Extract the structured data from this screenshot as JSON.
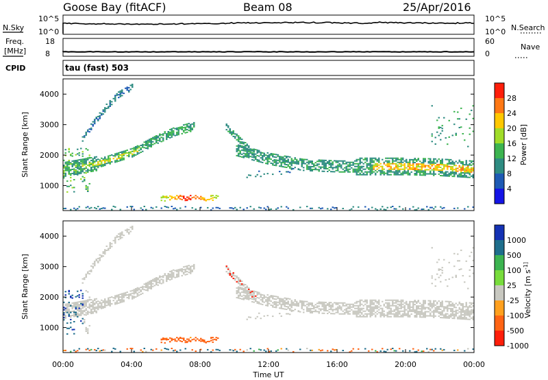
{
  "header": {
    "station": "Goose Bay (fitACF)",
    "beam": "Beam 08",
    "date": "25/Apr/2016"
  },
  "strips": {
    "nsky": {
      "label": "N.Sky",
      "tick_top": "10^5",
      "tick_bottom": "10^0"
    },
    "nsearch": {
      "label": "N.Search",
      "tick_top": "10^5",
      "tick_bottom": "10^0"
    },
    "freq": {
      "label_line1": "Freq.",
      "label_line2": "[MHz]",
      "tick_top": "18",
      "tick_bottom": "8",
      "value_mhz": 10.5
    },
    "nave": {
      "label": "Nave",
      "tick_top": "60",
      "tick_bottom": "0"
    },
    "cpid": {
      "label": "CPID",
      "value": "tau (fast) 503"
    }
  },
  "chart_data": [
    {
      "type": "heatmap",
      "name": "power-panel",
      "ylabel": "Slant Range [km]",
      "xlabel": "Time UT",
      "xlim": [
        0,
        24
      ],
      "ylim": [
        180,
        4500
      ],
      "y_ticks": [
        1000,
        2000,
        3000,
        4000
      ],
      "x_tick_labels": [
        "00:00",
        "04:00",
        "08:00",
        "12:00",
        "16:00",
        "20:00",
        "00:00"
      ],
      "colorbar": {
        "label": "Power [dB]",
        "ticks": [
          4,
          8,
          12,
          16,
          20,
          24,
          28
        ],
        "range": [
          0,
          30
        ],
        "colors": [
          "#1414e6",
          "#1e5ab4",
          "#2e8c82",
          "#3cb450",
          "#a0dc28",
          "#ffc800",
          "#ff7814",
          "#ff1e0a"
        ]
      },
      "features": [
        {
          "desc": "upper arc",
          "t": [
            1.0,
            1.8,
            2.5,
            3.2,
            4.0
          ],
          "range_km": [
            2500,
            3100,
            3600,
            4000,
            4250
          ]
        },
        {
          "desc": "main F-region band",
          "t": [
            0.0,
            2.0,
            4.0,
            5.5,
            6.5,
            7.5
          ],
          "range_km": [
            1550,
            1750,
            2100,
            2550,
            2800,
            2950
          ]
        },
        {
          "desc": "afternoon band",
          "t": [
            10.0,
            12.0,
            14.0,
            16.0,
            18.0,
            20.0,
            22.0,
            24.0
          ],
          "range_km": [
            2200,
            1900,
            1700,
            1650,
            1650,
            1650,
            1620,
            1550
          ]
        },
        {
          "desc": "near-range echo peak",
          "t": [
            6.0,
            7.0,
            7.5,
            8.0,
            9.0
          ],
          "range_km": [
            600,
            600,
            550,
            600,
            650
          ],
          "peak_db": 30
        }
      ]
    },
    {
      "type": "heatmap",
      "name": "velocity-panel",
      "ylabel": "Slant Range [km]",
      "xlabel": "Time UT",
      "xlim": [
        0,
        24
      ],
      "ylim": [
        180,
        4500
      ],
      "y_ticks": [
        1000,
        2000,
        3000,
        4000
      ],
      "x_tick_labels": [
        "00:00",
        "04:00",
        "08:00",
        "12:00",
        "16:00",
        "20:00",
        "00:00"
      ],
      "colorbar": {
        "label": "Velocity [m s^-1]",
        "ticks": [
          1000,
          500,
          100,
          25,
          -25,
          -100,
          -500,
          -1000
        ],
        "colors": [
          "#1432b4",
          "#1e6e8c",
          "#3cb450",
          "#78dc3c",
          "#c8c8c0",
          "#ffa01e",
          "#ff6414",
          "#ff1e0a"
        ]
      },
      "features": [
        {
          "desc": "ground scatter band (grey)",
          "t": [
            0.0,
            6.0,
            12.0,
            24.0
          ],
          "range_km": [
            1600,
            2600,
            2000,
            1500
          ],
          "velocity": 0
        },
        {
          "desc": "near-range echo (orange)",
          "t": [
            5.5,
            8.0,
            9.0
          ],
          "range_km": [
            550,
            600,
            650
          ],
          "velocity": -150
        }
      ]
    }
  ]
}
